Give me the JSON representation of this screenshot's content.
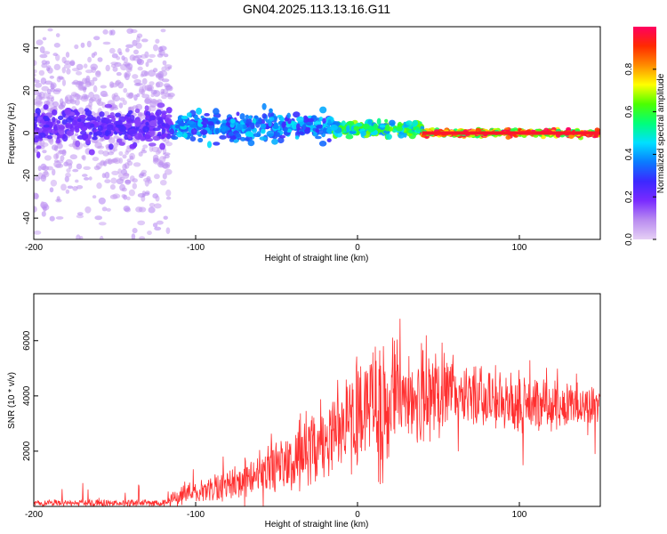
{
  "figure": {
    "title": "GN04.2025.113.13.16.G11"
  },
  "chart_data": [
    {
      "type": "heatmap",
      "xlabel": "Height of straight line (km)",
      "ylabel": "Frequency (Hz)",
      "xlim": [
        -200,
        150
      ],
      "ylim": [
        -50,
        50
      ],
      "x_ticks": [
        -200,
        -100,
        0,
        100
      ],
      "y_ticks": [
        -40,
        -20,
        0,
        20,
        40
      ],
      "colorbar": {
        "label": "Normalized spectral amplitude",
        "range": [
          0.0,
          1.0
        ],
        "ticks": [
          0.0,
          0.2,
          0.4,
          0.6,
          0.8
        ],
        "colormap": [
          "#e6d0f5",
          "#b98cf0",
          "#7a2bff",
          "#3c28ff",
          "#0a7bff",
          "#00e0ff",
          "#00ff7a",
          "#4cff00",
          "#ffff00",
          "#ff8c00",
          "#ff2a00",
          "#ff0060"
        ]
      },
      "bands": [
        {
          "x_from": -200,
          "x_to": -115,
          "center_hz": 5,
          "spread_hz": 45,
          "amplitude": 0.1
        },
        {
          "x_from": -200,
          "x_to": -115,
          "center_hz": 3,
          "spread_hz": 8,
          "amplitude": 0.25
        },
        {
          "x_from": -115,
          "x_to": -15,
          "center_hz": 3,
          "spread_hz": 6,
          "amplitude": 0.45
        },
        {
          "x_from": -15,
          "x_to": 40,
          "center_hz": 2,
          "spread_hz": 3,
          "amplitude": 0.65
        },
        {
          "x_from": 40,
          "x_to": 150,
          "center_hz": 0,
          "spread_hz": 1.5,
          "amplitude": 1.0
        }
      ]
    },
    {
      "type": "line",
      "xlabel": "Height of straight line (km)",
      "ylabel": "SNR (10 * v/v)",
      "xlim": [
        -200,
        150
      ],
      "ylim": [
        0,
        7700
      ],
      "x_ticks": [
        -200,
        -100,
        0,
        100
      ],
      "y_ticks": [
        2000,
        4000,
        6000
      ],
      "color": "#ff3030",
      "envelope": [
        {
          "x": -200,
          "low": 0,
          "high": 250
        },
        {
          "x": -120,
          "low": 0,
          "high": 250
        },
        {
          "x": -110,
          "low": 50,
          "high": 700
        },
        {
          "x": -80,
          "low": 150,
          "high": 1400
        },
        {
          "x": -60,
          "low": 300,
          "high": 2000
        },
        {
          "x": -40,
          "low": 500,
          "high": 2800
        },
        {
          "x": -20,
          "low": 800,
          "high": 4200
        },
        {
          "x": 0,
          "low": 1200,
          "high": 5300
        },
        {
          "x": 20,
          "low": 1800,
          "high": 6500
        },
        {
          "x": 40,
          "low": 2200,
          "high": 6000
        },
        {
          "x": 60,
          "low": 2800,
          "high": 5400
        },
        {
          "x": 80,
          "low": 2800,
          "high": 5000
        },
        {
          "x": 100,
          "low": 2600,
          "high": 4800
        },
        {
          "x": 130,
          "low": 2800,
          "high": 4500
        },
        {
          "x": 150,
          "low": 2900,
          "high": 4300
        }
      ]
    }
  ]
}
